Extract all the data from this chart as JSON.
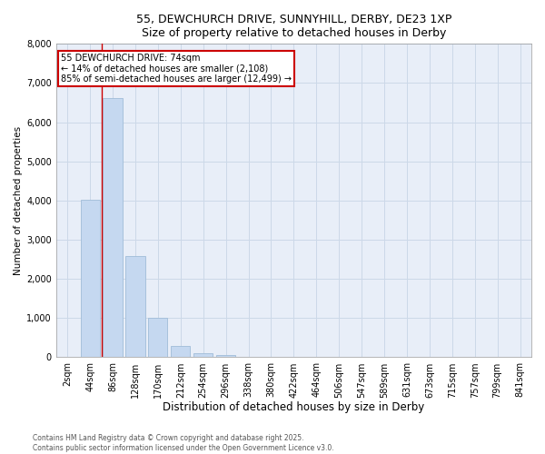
{
  "title_line1": "55, DEWCHURCH DRIVE, SUNNYHILL, DERBY, DE23 1XP",
  "title_line2": "Size of property relative to detached houses in Derby",
  "xlabel": "Distribution of detached houses by size in Derby",
  "ylabel": "Number of detached properties",
  "bar_color": "#c5d8f0",
  "bar_edge_color": "#a0bcd8",
  "categories": [
    "2sqm",
    "44sqm",
    "86sqm",
    "128sqm",
    "170sqm",
    "212sqm",
    "254sqm",
    "296sqm",
    "338sqm",
    "380sqm",
    "422sqm",
    "464sqm",
    "506sqm",
    "547sqm",
    "589sqm",
    "631sqm",
    "673sqm",
    "715sqm",
    "757sqm",
    "799sqm",
    "841sqm"
  ],
  "values": [
    5,
    4020,
    6620,
    2580,
    1000,
    290,
    105,
    50,
    8,
    2,
    1,
    0,
    0,
    0,
    0,
    0,
    0,
    0,
    0,
    0,
    0
  ],
  "red_line_x": 1.5,
  "annotation_text": "55 DEWCHURCH DRIVE: 74sqm\n← 14% of detached houses are smaller (2,108)\n85% of semi-detached houses are larger (12,499) →",
  "annotation_box_color": "#ffffff",
  "annotation_border_color": "#cc0000",
  "ylim": [
    0,
    8000
  ],
  "yticks": [
    0,
    1000,
    2000,
    3000,
    4000,
    5000,
    6000,
    7000,
    8000
  ],
  "grid_color": "#ccd8e8",
  "background_color": "#e8eef8",
  "footer_line1": "Contains HM Land Registry data © Crown copyright and database right 2025.",
  "footer_line2": "Contains public sector information licensed under the Open Government Licence v3.0."
}
